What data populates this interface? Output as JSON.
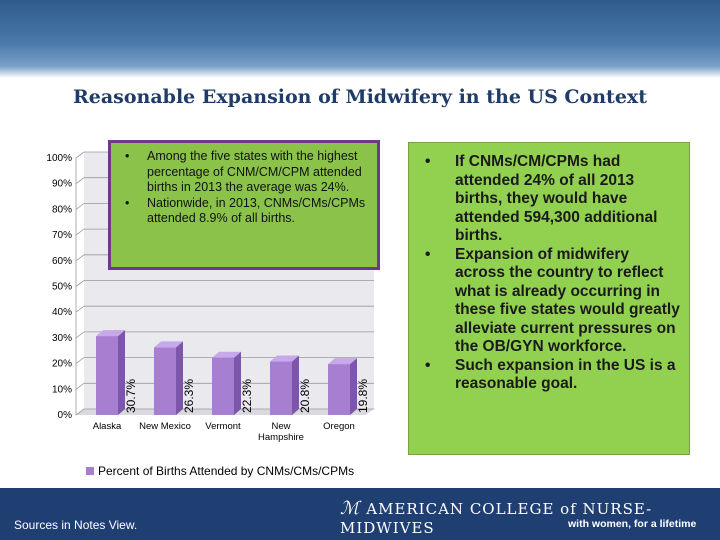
{
  "slide": {
    "title": "Reasonable Expansion of Midwifery in the US Context"
  },
  "chart_data": {
    "type": "bar",
    "categories": [
      "Alaska",
      "New Mexico",
      "Vermont",
      "New Hampshire",
      "Oregon"
    ],
    "category_lines": [
      [
        "Alaska"
      ],
      [
        "New Mexico"
      ],
      [
        "Vermont"
      ],
      [
        "New",
        "Hampshire"
      ],
      [
        "Oregon"
      ]
    ],
    "values": [
      30.7,
      26.3,
      22.3,
      20.8,
      19.8
    ],
    "value_labels": [
      "30.7%",
      "26.3%",
      "22.3%",
      "20.8%",
      "19.8%"
    ],
    "series": [
      {
        "name": "Percent of Births Attended by CNMs/CMs/CPMs",
        "values": [
          30.7,
          26.3,
          22.3,
          20.8,
          19.8
        ]
      }
    ],
    "ylim": [
      0,
      100
    ],
    "yticks": [
      "0%",
      "10%",
      "20%",
      "30%",
      "40%",
      "50%",
      "60%",
      "70%",
      "80%",
      "90%",
      "100%"
    ],
    "legend_position": "bottom",
    "bar_color": "#a77fd1"
  },
  "callout": {
    "bullets": [
      "Among the five states with the highest percentage of CNM/CM/CPM attended births in 2013 the average was 24%.",
      "Nationwide, in 2013, CNMs/CMs/CPMs attended  8.9% of all births."
    ]
  },
  "right_box": {
    "bullets": [
      "If CNMs/CM/CPMs had attended 24% of all 2013 births, they would have attended 594,300 additional births.",
      "Expansion of midwifery across the country to reflect what is already occurring in these five states would greatly alleviate current pressures on the OB/GYN workforce.",
      "Such expansion in the US is a reasonable goal."
    ]
  },
  "legend": {
    "label": "Percent of Births Attended by CNMs/CMs/CPMs"
  },
  "footer": {
    "sources": "Sources in Notes View.",
    "org_name": "AMERICAN COLLEGE of NURSE-MIDWIVES",
    "tagline": "with women, for a lifetime"
  },
  "colors": {
    "header_blue": "#2f5b8c",
    "title_navy": "#1f3c68",
    "green_box": "#92d050",
    "callout_border": "#6b3a8a",
    "footer_navy": "#1f3f73"
  }
}
